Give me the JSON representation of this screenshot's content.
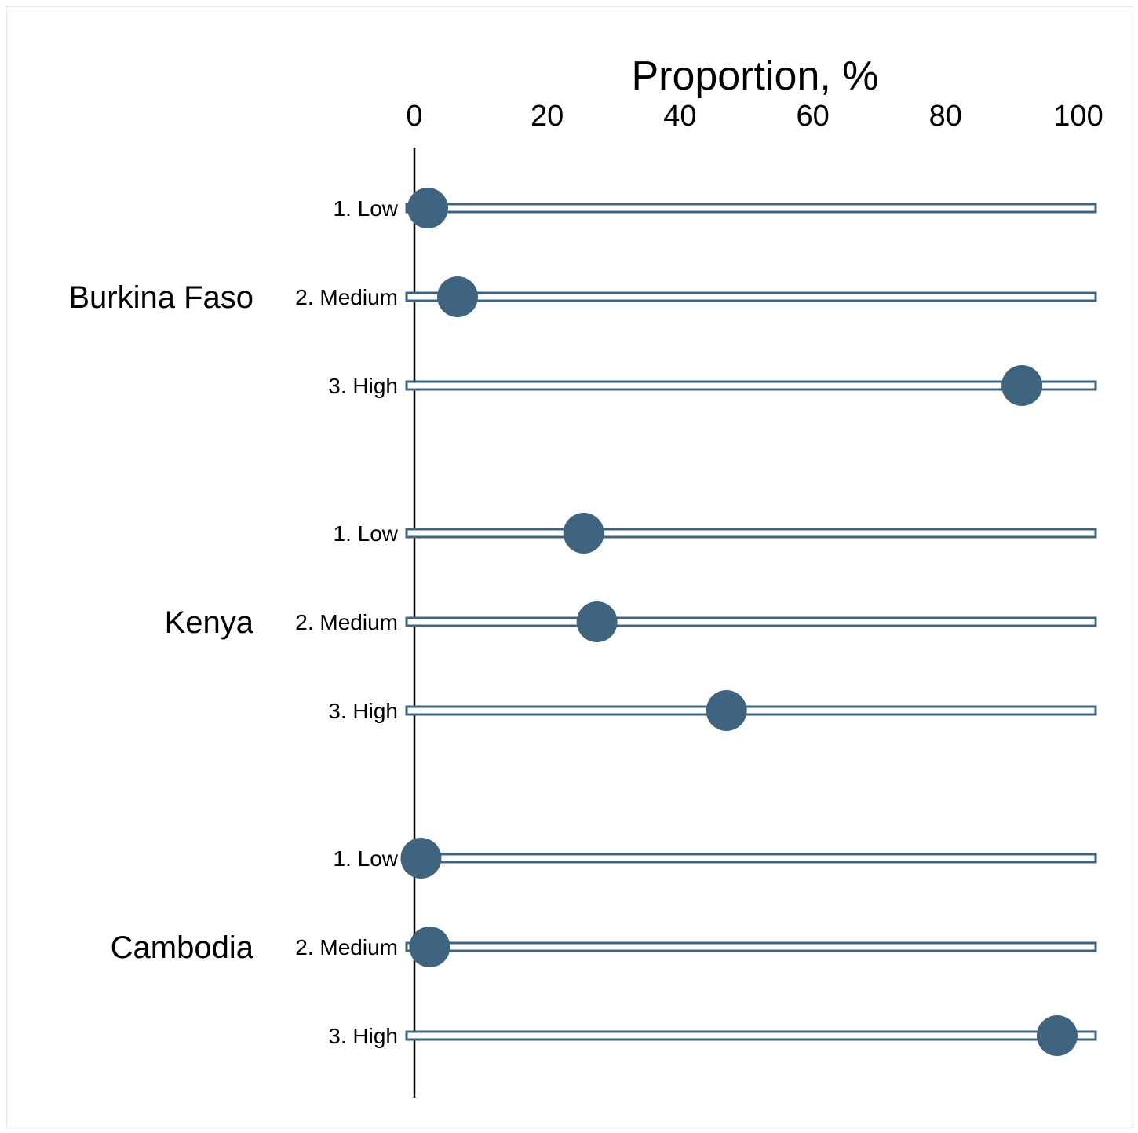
{
  "chart_data": {
    "type": "dot",
    "xlabel": "Proportion, %",
    "xlim": [
      0,
      100
    ],
    "xticks": [
      0,
      20,
      40,
      60,
      80,
      100
    ],
    "groups": [
      {
        "name": "Burkina Faso",
        "rows": [
          {
            "label": "1. Low",
            "value": 2
          },
          {
            "label": "2. Medium",
            "value": 6.5
          },
          {
            "label": "3. High",
            "value": 91.5
          }
        ]
      },
      {
        "name": "Kenya",
        "rows": [
          {
            "label": "1. Low",
            "value": 25.5
          },
          {
            "label": "2. Medium",
            "value": 27.5
          },
          {
            "label": "3. High",
            "value": 47
          }
        ]
      },
      {
        "name": "Cambodia",
        "rows": [
          {
            "label": "1. Low",
            "value": 1
          },
          {
            "label": "2. Medium",
            "value": 2.3
          },
          {
            "label": "3. High",
            "value": 96.8
          }
        ]
      }
    ],
    "colors": {
      "marker": "#3f6480",
      "bar": "#3f6480",
      "axis": "#000000"
    }
  }
}
